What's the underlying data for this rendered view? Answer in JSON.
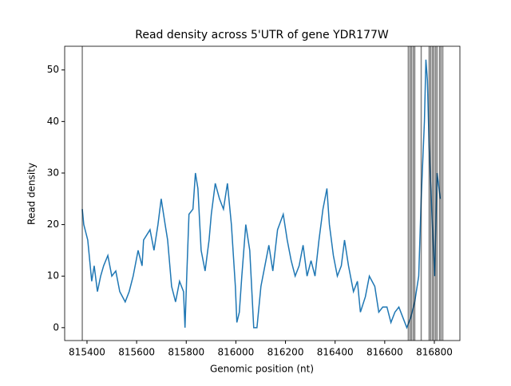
{
  "chart_data": {
    "type": "line",
    "title": "Read density across 5'UTR of gene YDR177W",
    "x_label": "Genomic position (nt)",
    "y_label": "Read density",
    "x": [
      815381,
      815387,
      815403,
      815413,
      815419,
      815429,
      815442,
      815455,
      815467,
      815484,
      815500,
      815516,
      815532,
      815554,
      815570,
      815586,
      815606,
      815622,
      815628,
      815654,
      815670,
      815686,
      815699,
      815715,
      815725,
      815741,
      815757,
      815773,
      815789,
      815795,
      815802,
      815811,
      815827,
      815837,
      815847,
      815860,
      815876,
      815892,
      815901,
      815917,
      815934,
      815950,
      815966,
      815982,
      815998,
      816004,
      816014,
      816024,
      816040,
      816056,
      816072,
      816085,
      816101,
      816117,
      816133,
      816149,
      816168,
      816191,
      816207,
      816223,
      816239,
      816255,
      816271,
      816287,
      816303,
      816319,
      816335,
      816351,
      816367,
      816377,
      816393,
      816409,
      816425,
      816438,
      816454,
      816474,
      816490,
      816502,
      816522,
      816538,
      816560,
      816576,
      816592,
      816609,
      816625,
      816641,
      816657,
      816673,
      816689,
      816705,
      816721,
      816737,
      816747,
      816760,
      816766,
      816772,
      816779,
      816792,
      816801,
      816811,
      816824
    ],
    "series": [
      {
        "name": "Read density",
        "color": "#1f77b4",
        "values": [
          23,
          20,
          17,
          12,
          9,
          12,
          7,
          10,
          12,
          14,
          10,
          11,
          7,
          5,
          7,
          10,
          15,
          12,
          17,
          19,
          15,
          20,
          25,
          20,
          17,
          8,
          5,
          9,
          7,
          0,
          10,
          22,
          23,
          30,
          27,
          15,
          11,
          17,
          22,
          28,
          25,
          23,
          28,
          20,
          8,
          1,
          3,
          10,
          20,
          15,
          0,
          0,
          8,
          12,
          16,
          11,
          19,
          22,
          17,
          13,
          10,
          12,
          16,
          10,
          13,
          10,
          17,
          23,
          27,
          20,
          14,
          10,
          12,
          17,
          12,
          7,
          9,
          3,
          6,
          10,
          8,
          3,
          4,
          4,
          1,
          3,
          4,
          2,
          0,
          2,
          5,
          10,
          25,
          40,
          52,
          48,
          35,
          20,
          10,
          30,
          25
        ]
      }
    ],
    "vlines": {
      "x": [
        815381,
        816695,
        816702,
        816708,
        816715,
        816721,
        816747,
        816779,
        816785,
        816792,
        816798,
        816805,
        816811,
        816821,
        816827,
        816834
      ],
      "color": "#000000",
      "opacity": 0.5
    },
    "xlim": [
      815310,
      816903
    ],
    "ylim": [
      -2.5,
      54.6
    ],
    "xticks": [
      815400,
      815600,
      815800,
      816000,
      816200,
      816400,
      816600,
      816800
    ],
    "yticks": [
      0,
      10,
      20,
      30,
      40,
      50
    ]
  }
}
